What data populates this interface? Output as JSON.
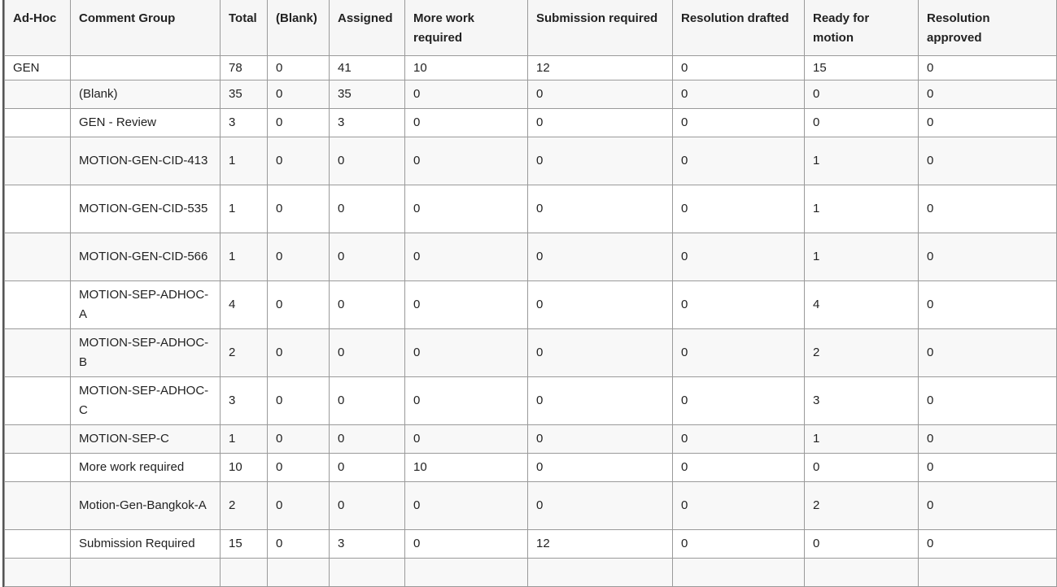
{
  "headers": [
    "Ad-Hoc",
    "Comment Group",
    "Total",
    "(Blank)",
    "Assigned",
    "More work required",
    "Submission required",
    "Resolution drafted",
    "Ready for motion",
    "Resolution approved"
  ],
  "rows": [
    [
      "GEN",
      "",
      "78",
      "0",
      "41",
      "10",
      "12",
      "0",
      "15",
      "0"
    ],
    [
      "",
      "(Blank)",
      "35",
      "0",
      "35",
      "0",
      "0",
      "0",
      "0",
      "0"
    ],
    [
      "",
      "GEN - Review",
      "3",
      "0",
      "3",
      "0",
      "0",
      "0",
      "0",
      "0"
    ],
    [
      "",
      "MOTION-GEN-CID-413",
      "1",
      "0",
      "0",
      "0",
      "0",
      "0",
      "1",
      "0"
    ],
    [
      "",
      "MOTION-GEN-CID-535",
      "1",
      "0",
      "0",
      "0",
      "0",
      "0",
      "1",
      "0"
    ],
    [
      "",
      "MOTION-GEN-CID-566",
      "1",
      "0",
      "0",
      "0",
      "0",
      "0",
      "1",
      "0"
    ],
    [
      "",
      "MOTION-SEP-ADHOC-A",
      "4",
      "0",
      "0",
      "0",
      "0",
      "0",
      "4",
      "0"
    ],
    [
      "",
      "MOTION-SEP-ADHOC-B",
      "2",
      "0",
      "0",
      "0",
      "0",
      "0",
      "2",
      "0"
    ],
    [
      "",
      "MOTION-SEP-ADHOC-C",
      "3",
      "0",
      "0",
      "0",
      "0",
      "0",
      "3",
      "0"
    ],
    [
      "",
      "MOTION-SEP-C",
      "1",
      "0",
      "0",
      "0",
      "0",
      "0",
      "1",
      "0"
    ],
    [
      "",
      "More work required",
      "10",
      "0",
      "0",
      "10",
      "0",
      "0",
      "0",
      "0"
    ],
    [
      "",
      "Motion-Gen-Bangkok-A",
      "2",
      "0",
      "0",
      "0",
      "0",
      "0",
      "2",
      "0"
    ],
    [
      "",
      "Submission Required",
      "15",
      "0",
      "3",
      "0",
      "12",
      "0",
      "0",
      "0"
    ],
    [
      "",
      "",
      "",
      "",
      "",
      "",
      "",
      "",
      "",
      ""
    ]
  ]
}
